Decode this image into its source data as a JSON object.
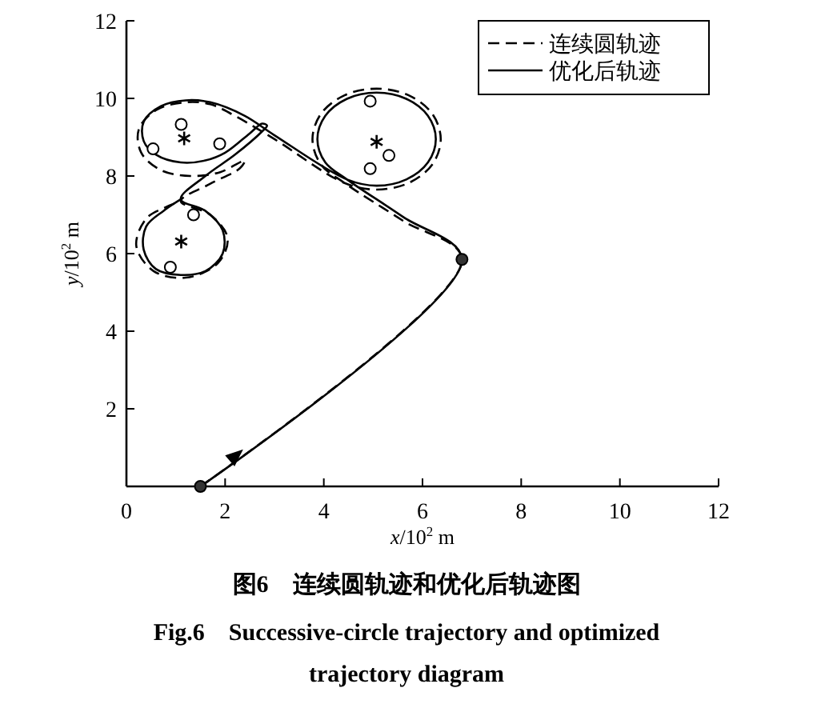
{
  "chart_data": {
    "type": "line",
    "title": "图6　连续圆轨迹和优化后轨迹图",
    "subtitle": "Fig.6　Successive-circle trajectory and optimized trajectory diagram",
    "xlabel": "x/10$^{2}$ m",
    "ylabel": "y/10$^{2}$ m",
    "xlim": [
      0,
      12
    ],
    "ylim": [
      0,
      12
    ],
    "xticks": [
      0,
      2,
      4,
      6,
      8,
      10,
      12
    ],
    "yticks": [
      2,
      4,
      6,
      8,
      10,
      12
    ],
    "legend": "top right",
    "grid": false,
    "series": [
      {
        "name": "连续圆轨迹",
        "line_style": "dashed",
        "color": "#000000",
        "x": [
          1.5,
          6.8,
          5.6,
          4.42,
          3.94,
          3.77,
          3.94,
          4.42,
          5.07,
          5.72,
          6.2,
          6.37,
          6.2,
          5.72,
          5.07,
          4.42,
          3.0,
          2.2,
          1.7,
          1.2,
          0.6,
          0.25,
          0.3,
          0.7,
          1.3,
          1.9,
          2.4,
          2.3,
          1.7,
          1.1,
          1.7,
          2.05,
          1.85,
          1.2,
          0.55,
          0.2,
          0.4,
          0.8,
          1.1
        ],
        "values": [
          0,
          5.85,
          6.85,
          7.82,
          8.3,
          8.95,
          9.6,
          10.08,
          10.25,
          10.08,
          9.6,
          8.95,
          8.3,
          7.82,
          7.65,
          7.82,
          8.95,
          9.55,
          9.85,
          9.9,
          9.7,
          9.2,
          8.6,
          8.15,
          8.0,
          8.1,
          8.4,
          8.2,
          7.8,
          7.35,
          7.0,
          6.4,
          5.75,
          5.38,
          5.55,
          6.2,
          6.9,
          7.2,
          7.35
        ]
      },
      {
        "name": "优化后轨迹",
        "line_style": "solid",
        "color": "#000000",
        "x": [
          1.5,
          6.8,
          5.6,
          4.47,
          4.03,
          3.87,
          4.03,
          4.47,
          5.07,
          5.67,
          6.11,
          6.27,
          6.11,
          5.67,
          5.07,
          4.47,
          3.0,
          2.4,
          1.7,
          1.2,
          0.7,
          0.35,
          0.35,
          0.6,
          1.1,
          1.6,
          2.0,
          2.5,
          2.75,
          2.85,
          2.75,
          2.2,
          1.6,
          1.1,
          1.6,
          1.95,
          1.95,
          1.6,
          1.1,
          0.6,
          0.35,
          0.4,
          0.75,
          1.1
        ],
        "values": [
          0,
          5.85,
          6.95,
          7.91,
          8.35,
          8.95,
          9.55,
          9.99,
          10.15,
          9.99,
          9.55,
          8.95,
          8.35,
          7.91,
          7.75,
          7.91,
          9.05,
          9.55,
          9.9,
          9.95,
          9.8,
          9.4,
          8.9,
          8.55,
          8.35,
          8.4,
          8.6,
          9.1,
          9.35,
          9.3,
          9.15,
          8.55,
          8.0,
          7.4,
          7.1,
          6.6,
          6.0,
          5.55,
          5.45,
          5.6,
          6.1,
          6.7,
          7.1,
          7.4
        ]
      },
      {
        "type": "scatter",
        "marker": "circle",
        "color": "#ffffff",
        "x": [
          1.11,
          0.54,
          1.89,
          1.36,
          0.89,
          4.94,
          5.32,
          4.94
        ],
        "values": [
          9.33,
          8.7,
          8.83,
          7.0,
          5.65,
          9.93,
          8.53,
          8.19
        ]
      },
      {
        "type": "scatter",
        "marker": "cross",
        "color": "#000000",
        "x": [
          1.17,
          1.11,
          5.07
        ],
        "values": [
          8.97,
          6.31,
          8.88
        ]
      },
      {
        "type": "scatter",
        "marker": "circle",
        "color": "#333333",
        "x": [
          1.5,
          6.8
        ],
        "values": [
          0,
          5.85
        ]
      }
    ]
  }
}
